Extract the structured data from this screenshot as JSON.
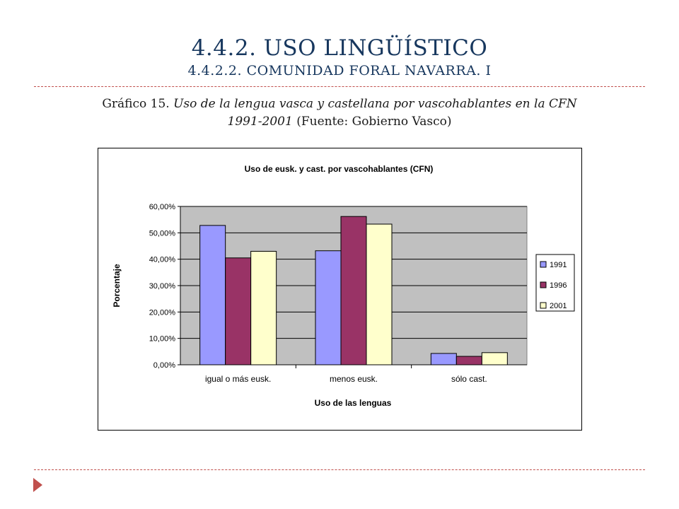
{
  "slide": {
    "title": "4.4.2. USO LINGÜÍSTICO",
    "subtitle": "4.4.2.2. COMUNIDAD FORAL NAVARRA. I",
    "caption_prefix": "Gráfico 15. ",
    "caption_italic_1": "Uso de la lengua vasca y castellana por vascohablantes en la CFN",
    "caption_italic_2": "1991-2001",
    "caption_suffix": " (Fuente: Gobierno Vasco)",
    "divider_color": "#c0504d",
    "title_color": "#17375e",
    "nav_icon": "play-arrow-icon"
  },
  "chart_data": {
    "type": "bar",
    "title": "Uso de eusk.  y cast.  por vascohablantes (CFN)",
    "xlabel": "Uso de las lenguas",
    "ylabel": "Porcentaje",
    "categories": [
      "igual o más eusk.",
      "menos eusk.",
      "sólo cast."
    ],
    "series": [
      {
        "name": "1991",
        "color": "#9999ff",
        "values": [
          52.8,
          43.2,
          4.3
        ]
      },
      {
        "name": "1996",
        "color": "#993366",
        "values": [
          40.5,
          56.2,
          3.2
        ]
      },
      {
        "name": "2001",
        "color": "#ffffcc",
        "values": [
          43.0,
          53.3,
          4.6
        ]
      }
    ],
    "ylim": [
      0,
      60
    ],
    "yticks": [
      "0,00%",
      "10,00%",
      "20,00%",
      "30,00%",
      "40,00%",
      "50,00%",
      "60,00%"
    ],
    "plot_background": "#c0c0c0",
    "grid": true,
    "legend_position": "right"
  }
}
